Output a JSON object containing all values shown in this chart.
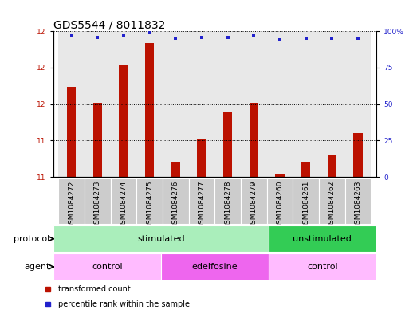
{
  "title": "GDS5544 / 8011832",
  "samples": [
    "GSM1084272",
    "GSM1084273",
    "GSM1084274",
    "GSM1084275",
    "GSM1084276",
    "GSM1084277",
    "GSM1084278",
    "GSM1084279",
    "GSM1084260",
    "GSM1084261",
    "GSM1084262",
    "GSM1084263"
  ],
  "transformed_count": [
    11.62,
    11.51,
    11.77,
    11.92,
    11.1,
    11.26,
    11.45,
    11.51,
    11.02,
    11.1,
    11.15,
    11.3
  ],
  "percentile_rank": [
    97,
    96,
    97,
    99,
    95,
    96,
    96,
    97,
    94,
    95,
    95,
    95
  ],
  "ylim_left": [
    11,
    12
  ],
  "ylim_right": [
    0,
    100
  ],
  "yticks_left": [
    11,
    11.25,
    11.5,
    11.75,
    12
  ],
  "yticks_right": [
    0,
    25,
    50,
    75,
    100
  ],
  "bar_color": "#bb1100",
  "dot_color": "#2222cc",
  "background_color": "#ffffff",
  "cell_color": "#cccccc",
  "protocol_groups": [
    {
      "label": "stimulated",
      "start": 0,
      "end": 7,
      "color": "#aaeebb"
    },
    {
      "label": "unstimulated",
      "start": 8,
      "end": 11,
      "color": "#33cc55"
    }
  ],
  "agent_groups": [
    {
      "label": "control",
      "start": 0,
      "end": 3,
      "color": "#ffbbff"
    },
    {
      "label": "edelfosine",
      "start": 4,
      "end": 7,
      "color": "#ee66ee"
    },
    {
      "label": "control",
      "start": 8,
      "end": 11,
      "color": "#ffbbff"
    }
  ],
  "protocol_label": "protocol",
  "agent_label": "agent",
  "legend_items": [
    {
      "label": "transformed count",
      "color": "#bb1100"
    },
    {
      "label": "percentile rank within the sample",
      "color": "#2222cc"
    }
  ],
  "title_fontsize": 10,
  "tick_fontsize": 6.5,
  "label_fontsize": 8,
  "bar_width": 0.35
}
